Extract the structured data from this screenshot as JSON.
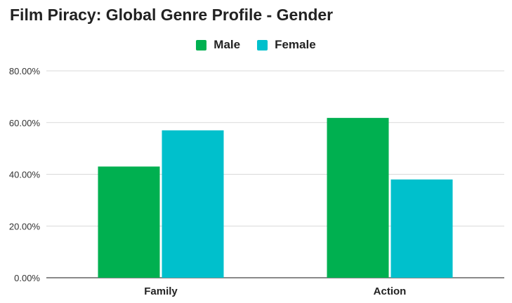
{
  "chart_data": {
    "type": "bar",
    "title": "Film Piracy: Global Genre Profile - Gender",
    "categories": [
      "Family",
      "Action"
    ],
    "series": [
      {
        "name": "Male",
        "values": [
          43.0,
          61.8
        ],
        "color": "#00b050"
      },
      {
        "name": "Female",
        "values": [
          57.0,
          38.0
        ],
        "color": "#00c0cc"
      }
    ],
    "xlabel": "",
    "ylabel": "",
    "ylim": [
      0,
      80
    ],
    "yticks": [
      0,
      20,
      40,
      60,
      80
    ],
    "ytick_labels": [
      "0.00%",
      "20.00%",
      "40.00%",
      "60.00%",
      "80.00%"
    ],
    "grid": true,
    "legend_position": "top-center"
  }
}
